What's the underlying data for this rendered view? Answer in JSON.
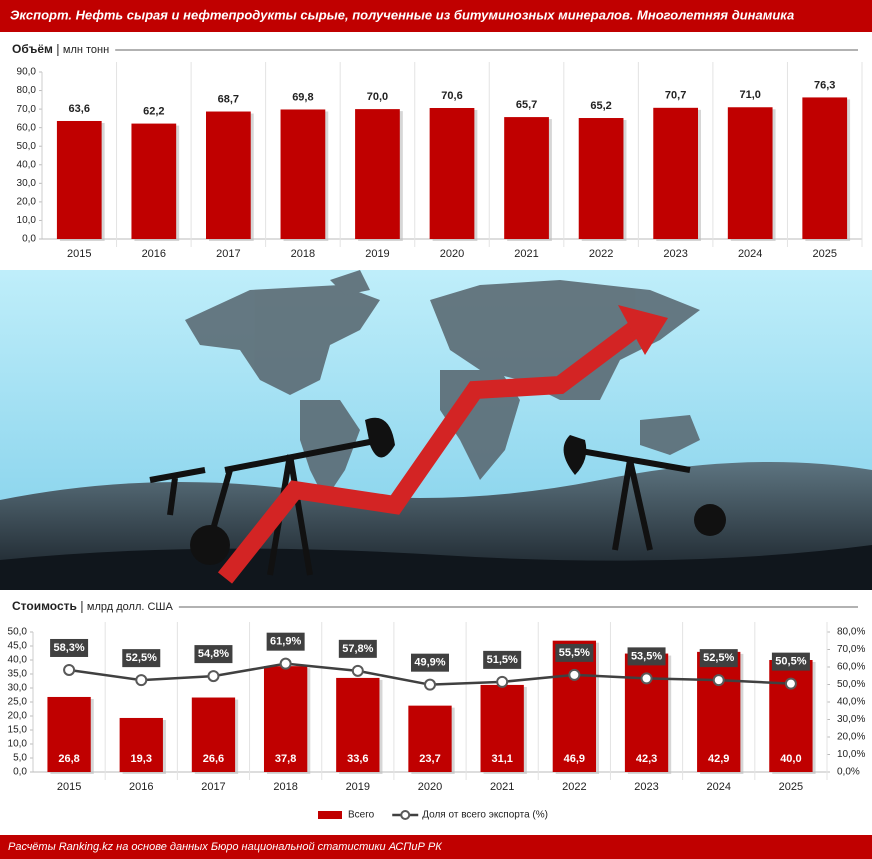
{
  "title": "Экспорт. Нефть сырая и нефтепродукты сырые, полученные из битуминозных минералов. Многолетняя динамика",
  "source": "Расчёты Ranking.kz на основе данных Бюро национальной статистики АСПиР РК",
  "chart_data": [
    {
      "type": "bar",
      "title": "Объём",
      "unit": "млн тонн",
      "categories": [
        "2015",
        "2016",
        "2017",
        "2018",
        "2019",
        "2020",
        "2021",
        "2022",
        "2023",
        "2024",
        "2025"
      ],
      "series": [
        {
          "type": "bar",
          "color": "#c00000",
          "values": [
            63.6,
            62.2,
            68.7,
            69.8,
            70.0,
            70.6,
            65.7,
            65.2,
            70.7,
            71.0,
            76.3
          ],
          "value_labels": [
            "63,6",
            "62,2",
            "68,7",
            "69,8",
            "70,0",
            "70,6",
            "65,7",
            "65,2",
            "70,7",
            "71,0",
            "76,3"
          ],
          "label_position": "above"
        }
      ],
      "ylim": [
        0,
        90
      ],
      "yticks": [
        {
          "value": 0,
          "label": "0,0"
        },
        {
          "value": 10,
          "label": "10,0"
        },
        {
          "value": 20,
          "label": "20,0"
        },
        {
          "value": 30,
          "label": "30,0"
        },
        {
          "value": 40,
          "label": "40,0"
        },
        {
          "value": 50,
          "label": "50,0"
        },
        {
          "value": 60,
          "label": "60,0"
        },
        {
          "value": 70,
          "label": "70,0"
        },
        {
          "value": 80,
          "label": "80,0"
        },
        {
          "value": 90,
          "label": "90,0"
        }
      ],
      "grid": false
    },
    {
      "type": "combo",
      "title": "Стоимость",
      "unit": "млрд долл. США",
      "categories": [
        "2015",
        "2016",
        "2017",
        "2018",
        "2019",
        "2020",
        "2021",
        "2022",
        "2023",
        "2024",
        "2025"
      ],
      "series": [
        {
          "name": "Всего",
          "type": "bar",
          "color": "#c00000",
          "values": [
            26.8,
            19.3,
            26.6,
            37.8,
            33.6,
            23.7,
            31.1,
            46.9,
            42.3,
            42.9,
            40.0
          ],
          "value_labels": [
            "26,8",
            "19,3",
            "26,6",
            "37,8",
            "33,6",
            "23,7",
            "31,1",
            "46,9",
            "42,3",
            "42,9",
            "40,0"
          ],
          "label_position": "inside-base"
        },
        {
          "name": "Доля от всего экспорта (%)",
          "type": "line",
          "axis": "y2",
          "color": "#404040",
          "values": [
            58.3,
            52.5,
            54.8,
            61.9,
            57.8,
            49.9,
            51.5,
            55.5,
            53.5,
            52.5,
            50.5
          ],
          "value_labels": [
            "58,3%",
            "52,5%",
            "54,8%",
            "61,9%",
            "57,8%",
            "49,9%",
            "51,5%",
            "55,5%",
            "53,5%",
            "52,5%",
            "50,5%"
          ]
        }
      ],
      "ylim": [
        0,
        50
      ],
      "yticks": [
        {
          "value": 0,
          "label": "0,0"
        },
        {
          "value": 5,
          "label": "5,0"
        },
        {
          "value": 10,
          "label": "10,0"
        },
        {
          "value": 15,
          "label": "15,0"
        },
        {
          "value": 20,
          "label": "20,0"
        },
        {
          "value": 25,
          "label": "25,0"
        },
        {
          "value": 30,
          "label": "30,0"
        },
        {
          "value": 35,
          "label": "35,0"
        },
        {
          "value": 40,
          "label": "40,0"
        },
        {
          "value": 45,
          "label": "45,0"
        },
        {
          "value": 50,
          "label": "50,0"
        }
      ],
      "y2lim": [
        0,
        80
      ],
      "y2ticks": [
        {
          "value": 0,
          "label": "0,0%"
        },
        {
          "value": 10,
          "label": "10,0%"
        },
        {
          "value": 20,
          "label": "20,0%"
        },
        {
          "value": 30,
          "label": "30,0%"
        },
        {
          "value": 40,
          "label": "40,0%"
        },
        {
          "value": 50,
          "label": "50,0%"
        },
        {
          "value": 60,
          "label": "60,0%"
        },
        {
          "value": 70,
          "label": "70,0%"
        },
        {
          "value": 80,
          "label": "80,0%"
        }
      ],
      "grid": false,
      "legend": "bottom"
    }
  ]
}
